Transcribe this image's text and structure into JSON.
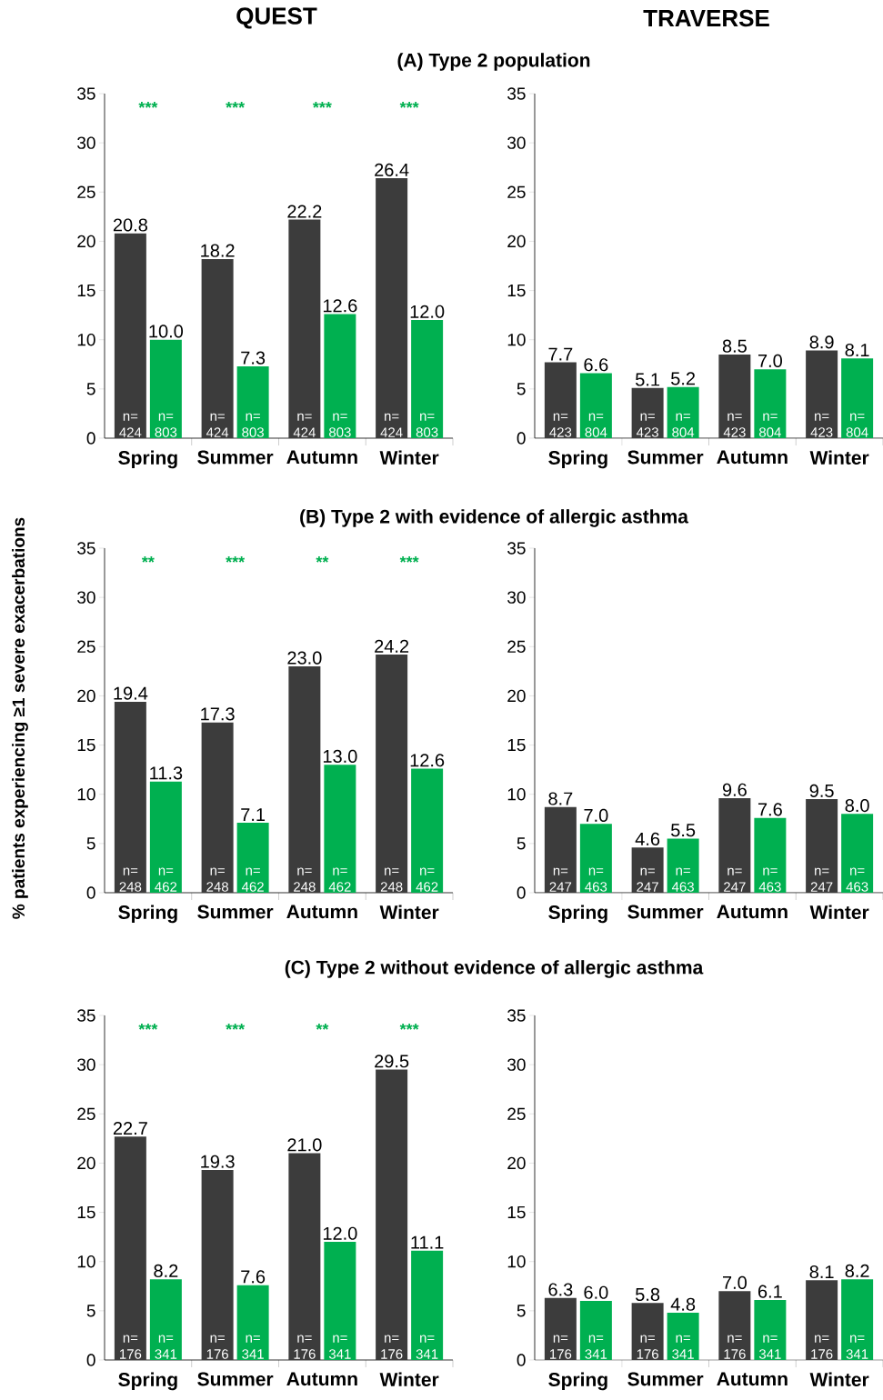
{
  "chart_data": [
    {
      "type": "bar",
      "title": "QUEST",
      "subtitle": "(A) Type 2 population",
      "categories": [
        "Spring",
        "Summer",
        "Autumn",
        "Winter"
      ],
      "series": [
        {
          "color": "#3c3c3c",
          "values": [
            20.8,
            18.2,
            22.2,
            26.4
          ],
          "value_labels": [
            "20.8",
            "18.2",
            "22.2",
            "26.4"
          ]
        },
        {
          "color": "#00b050",
          "values": [
            10.0,
            7.3,
            12.6,
            12.0
          ],
          "value_labels": [
            "10.0",
            "7.3",
            "12.6",
            "12.0"
          ]
        }
      ],
      "ylim": [
        0,
        35
      ],
      "yticks": [
        0,
        5,
        10,
        15,
        20,
        25,
        30,
        35
      ],
      "annotations": [
        "***",
        "***",
        "***",
        "***",
        "n= 424",
        "n= 803",
        "n= 424",
        "n= 803",
        "n= 424",
        "n= 803",
        "n= 424",
        "n= 803"
      ]
    },
    {
      "type": "bar",
      "title": "TRAVERSE",
      "categories": [
        "Spring",
        "Summer",
        "Autumn",
        "Winter"
      ],
      "series": [
        {
          "color": "#3c3c3c",
          "values": [
            7.7,
            5.1,
            8.5,
            8.9
          ],
          "value_labels": [
            "7.7",
            "5.1",
            "8.5",
            "8.9"
          ]
        },
        {
          "color": "#00b050",
          "values": [
            6.6,
            5.2,
            7.0,
            8.1
          ],
          "value_labels": [
            "6.6",
            "5.2",
            "7.0",
            "8.1"
          ]
        }
      ],
      "ylim": [
        0,
        35
      ],
      "yticks": [
        0,
        5,
        10,
        15,
        20,
        25,
        30,
        35
      ],
      "annotations": [
        "n= 423",
        "n= 804",
        "n= 423",
        "n= 804",
        "n= 423",
        "n= 804",
        "n= 423",
        "n= 804"
      ]
    },
    {
      "type": "bar",
      "subtitle": "(B) Type 2 with evidence of allergic asthma",
      "ylabel": "% patients experiencing ≥1 severe exacerbations",
      "categories": [
        "Spring",
        "Summer",
        "Autumn",
        "Winter"
      ],
      "series": [
        {
          "color": "#3c3c3c",
          "values": [
            19.4,
            17.3,
            23.0,
            24.2
          ],
          "value_labels": [
            "19.4",
            "17.3",
            "23.0",
            "24.2"
          ]
        },
        {
          "color": "#00b050",
          "values": [
            11.3,
            7.1,
            13.0,
            12.6
          ],
          "value_labels": [
            "11.3",
            "7.1",
            "13.0",
            "12.6"
          ]
        }
      ],
      "ylim": [
        0,
        35
      ],
      "yticks": [
        0,
        5,
        10,
        15,
        20,
        25,
        30,
        35
      ],
      "annotations": [
        "**",
        "***",
        "**",
        "***",
        "n= 248",
        "n= 462",
        "n= 248",
        "n= 462",
        "n= 248",
        "n= 462",
        "n= 248",
        "n= 462"
      ]
    },
    {
      "type": "bar",
      "categories": [
        "Spring",
        "Summer",
        "Autumn",
        "Winter"
      ],
      "series": [
        {
          "color": "#3c3c3c",
          "values": [
            8.7,
            4.6,
            9.6,
            9.5
          ],
          "value_labels": [
            "8.7",
            "4.6",
            "9.6",
            "9.5"
          ]
        },
        {
          "color": "#00b050",
          "values": [
            7.0,
            5.5,
            7.6,
            8.0
          ],
          "value_labels": [
            "7.0",
            "5.5",
            "7.6",
            "8.0"
          ]
        }
      ],
      "ylim": [
        0,
        35
      ],
      "yticks": [
        0,
        5,
        10,
        15,
        20,
        25,
        30,
        35
      ],
      "annotations": [
        "n= 247",
        "n= 463",
        "n= 247",
        "n= 463",
        "n= 247",
        "n= 463",
        "n= 247",
        "n= 463"
      ]
    },
    {
      "type": "bar",
      "subtitle": "(C) Type 2 without evidence of allergic asthma",
      "categories": [
        "Spring",
        "Summer",
        "Autumn",
        "Winter"
      ],
      "series": [
        {
          "color": "#3c3c3c",
          "values": [
            22.7,
            19.3,
            21.0,
            29.5
          ],
          "value_labels": [
            "22.7",
            "19.3",
            "21.0",
            "29.5"
          ]
        },
        {
          "color": "#00b050",
          "values": [
            8.2,
            7.6,
            12.0,
            11.1
          ],
          "value_labels": [
            "8.2",
            "7.6",
            "12.0",
            "11.1"
          ]
        }
      ],
      "ylim": [
        0,
        35
      ],
      "yticks": [
        0,
        5,
        10,
        15,
        20,
        25,
        30,
        35
      ],
      "annotations": [
        "***",
        "***",
        "**",
        "***",
        "n= 176",
        "n= 341",
        "n= 176",
        "n= 341",
        "n= 176",
        "n= 341",
        "n= 176",
        "n= 341"
      ]
    },
    {
      "type": "bar",
      "categories": [
        "Spring",
        "Summer",
        "Autumn",
        "Winter"
      ],
      "series": [
        {
          "color": "#3c3c3c",
          "values": [
            6.3,
            5.8,
            7.0,
            8.1
          ],
          "value_labels": [
            "6.3",
            "5.8",
            "7.0",
            "8.1"
          ]
        },
        {
          "color": "#00b050",
          "values": [
            6.0,
            4.8,
            6.1,
            8.2
          ],
          "value_labels": [
            "6.0",
            "4.8",
            "6.1",
            "8.2"
          ]
        }
      ],
      "ylim": [
        0,
        35
      ],
      "yticks": [
        0,
        5,
        10,
        15,
        20,
        25,
        30,
        35
      ],
      "annotations": [
        "n= 176",
        "n= 341",
        "n= 176",
        "n= 341",
        "n= 176",
        "n= 341",
        "n= 176",
        "n= 341"
      ]
    }
  ]
}
